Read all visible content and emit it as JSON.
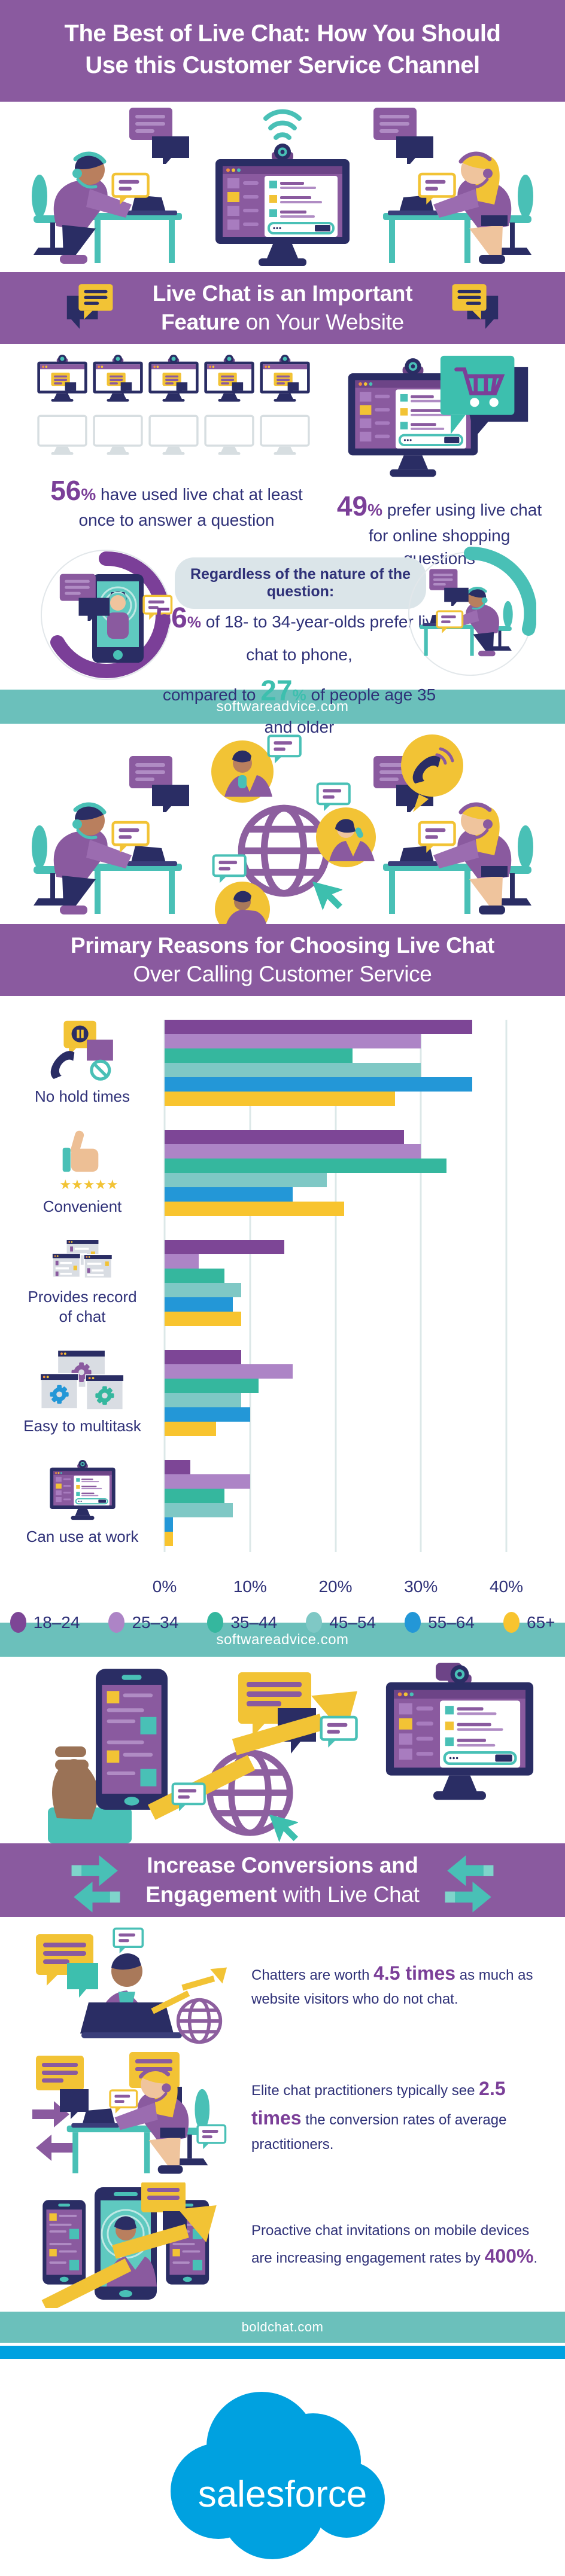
{
  "header": {
    "title_line1": "The Best of Live Chat: How You Should",
    "title_line2": "Use this Customer Service Channel"
  },
  "section_feature": {
    "heading_line1": "Live Chat is an Important",
    "heading_line2_bold": "Feature",
    "heading_line2_rest": " on Your Website",
    "stat_left_value": "56",
    "stat_left_unit": "%",
    "stat_left_text": " have used live chat at least once to answer a question",
    "stat_right_value": "49",
    "stat_right_unit": "%",
    "stat_right_text": " prefer using live chat for online shopping questions"
  },
  "callout": {
    "pill_text": "Regardless of the nature of the question:",
    "stat1_value": "56",
    "stat1_unit": "%",
    "stat1_text": " of 18- to 34-year-olds prefer live chat to phone,",
    "stat2_prefix": "compared to ",
    "stat2_value": "27",
    "stat2_unit": "%",
    "stat2_text": " of people age 35 and older"
  },
  "source_bars": {
    "first": "softwareadvice.com",
    "second": "softwareadvice.com",
    "third": "boldchat.com"
  },
  "section_reasons": {
    "heading_line1": "Primary Reasons for Choosing Live Chat",
    "heading_line2": "Over Calling Customer Service"
  },
  "chart_data": {
    "type": "bar",
    "orientation": "horizontal",
    "title": "Primary Reasons for Choosing Live Chat Over Calling Customer Service",
    "categories": [
      "No hold times",
      "Convenient",
      "Provides record of chat",
      "Easy to multitask",
      "Can use at work"
    ],
    "series": [
      {
        "name": "18–24",
        "color": "#7d4696",
        "values": [
          36,
          28,
          14,
          9,
          3
        ]
      },
      {
        "name": "25–34",
        "color": "#ad84c6",
        "values": [
          30,
          30,
          4,
          15,
          10
        ]
      },
      {
        "name": "35–44",
        "color": "#35b79e",
        "values": [
          22,
          33,
          7,
          11,
          7
        ]
      },
      {
        "name": "45–54",
        "color": "#7fc8c5",
        "values": [
          30,
          19,
          9,
          9,
          8
        ]
      },
      {
        "name": "55–64",
        "color": "#2397d7",
        "values": [
          36,
          15,
          8,
          10,
          1
        ]
      },
      {
        "name": "65+",
        "color": "#f8c42f",
        "values": [
          27,
          21,
          9,
          6,
          1
        ]
      }
    ],
    "x_ticks": [
      "0%",
      "10%",
      "20%",
      "30%",
      "40%"
    ],
    "xlim": [
      0,
      40
    ],
    "grid": true,
    "legend_position": "bottom",
    "convenient_stars": "★★★★★"
  },
  "section_conversions": {
    "heading_line1": "Increase Conversions and",
    "heading_line2_bold": "Engagement",
    "heading_line2_rest": " with Live Chat",
    "stats": [
      {
        "prefix": "Chatters are worth ",
        "highlight": "4.5 times",
        "suffix": " as much as website visitors who do not chat."
      },
      {
        "prefix": "Elite chat practitioners typically see ",
        "highlight": "2.5 times",
        "suffix": " the conversion rates of average practitioners."
      },
      {
        "prefix": "Proactive chat invitations on mobile devices are increasing engagement rates by ",
        "highlight": "400%",
        "suffix": "."
      }
    ]
  },
  "footer": {
    "logo_text": "salesforce"
  }
}
